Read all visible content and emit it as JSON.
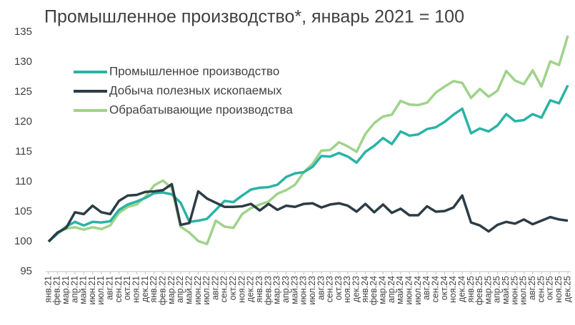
{
  "chart_data": {
    "type": "line",
    "title": "Промышленное производство*, январь 2021 = 100",
    "categories": [
      "янв.21",
      "фев.21",
      "мар.21",
      "апр.21",
      "май.21",
      "июн.21",
      "июл.21",
      "авг.21",
      "сен.21",
      "окт.21",
      "ноя.21",
      "дек.21",
      "янв.22",
      "фев.22",
      "мар.22",
      "апр.22",
      "май.22",
      "июн.22",
      "июл.22",
      "авг.22",
      "сен.22",
      "окт.22",
      "ноя.22",
      "дек.22",
      "янв.23",
      "фев.23",
      "мар.23",
      "апр.23",
      "май.23",
      "июн.23",
      "июл.23",
      "авг.23",
      "сен.23",
      "окт.23",
      "ноя.23",
      "дек.23",
      "янв.24",
      "фев.24",
      "мар.24",
      "апр.24",
      "май.24",
      "июн.24",
      "июл.24",
      "авг.24",
      "сен.24",
      "окт.24",
      "ноя.24",
      "дек.24",
      "янв.25",
      "фев.25",
      "мар.25",
      "апр.25",
      "май.25",
      "июн.25",
      "июл.25",
      "авг.25",
      "сен.25",
      "окт.25",
      "ноя.25",
      "дек.25"
    ],
    "series": [
      {
        "name": "Промышленное производство",
        "color": "#2ab3a6",
        "values": [
          100,
          101.3,
          102.5,
          103.3,
          102.7,
          103.3,
          103.2,
          103.4,
          105.3,
          106.2,
          106.7,
          107.3,
          108.1,
          108.2,
          107.9,
          106.5,
          103.3,
          103.5,
          103.8,
          105.3,
          106.8,
          106.6,
          107.7,
          108.7,
          109.0,
          109.1,
          109.5,
          110.8,
          111.4,
          111.6,
          112.5,
          114.3,
          114.2,
          114.8,
          114.2,
          113.2,
          115.0,
          116.0,
          117.3,
          116.3,
          118.4,
          117.7,
          117.9,
          118.8,
          119.1,
          120.0,
          121.2,
          122.2,
          118.1,
          118.9,
          118.4,
          119.4,
          121.3,
          120.1,
          120.3,
          121.3,
          120.7,
          123.6,
          123.1,
          126.1
        ]
      },
      {
        "name": "Добыча полезных ископаемых",
        "color": "#2d3c46",
        "values": [
          100,
          101.5,
          102.3,
          104.9,
          104.6,
          106.0,
          104.9,
          104.6,
          106.8,
          107.7,
          107.8,
          108.3,
          108.4,
          108.6,
          109.6,
          102.8,
          103.1,
          108.4,
          107.2,
          106.5,
          105.8,
          105.8,
          105.9,
          106.3,
          105.2,
          106.3,
          105.3,
          106.0,
          105.8,
          106.3,
          106.4,
          105.7,
          106.2,
          106.4,
          106.0,
          105.0,
          106.3,
          104.9,
          106.2,
          104.8,
          105.5,
          104.4,
          104.4,
          105.9,
          105.0,
          105.1,
          105.7,
          107.7,
          103.2,
          102.7,
          101.7,
          102.8,
          103.3,
          103.0,
          103.7,
          102.9,
          103.5,
          104.1,
          103.7,
          103.5
        ]
      },
      {
        "name": "Обрабатывающие производства",
        "color": "#9fd38a",
        "values": [
          100,
          101.4,
          102.2,
          102.4,
          102.0,
          102.4,
          102.1,
          102.7,
          104.8,
          105.8,
          106.2,
          107.5,
          109.4,
          110.2,
          108.9,
          102.5,
          101.5,
          100.1,
          99.6,
          103.5,
          102.5,
          102.3,
          104.6,
          105.6,
          106.2,
          106.7,
          108.0,
          108.6,
          109.5,
          111.6,
          113.0,
          115.2,
          115.3,
          116.6,
          115.9,
          115.0,
          118.0,
          119.8,
          120.9,
          121.2,
          123.5,
          122.9,
          122.8,
          123.2,
          124.9,
          125.9,
          126.8,
          126.5,
          124.0,
          125.5,
          124.2,
          125.2,
          128.5,
          126.9,
          126.3,
          128.6,
          125.9,
          130.1,
          129.5,
          134.4
        ]
      }
    ],
    "ylim": [
      95,
      135
    ],
    "yticks": [
      95,
      100,
      105,
      110,
      115,
      120,
      125,
      130,
      135
    ],
    "legend": "upper-left"
  }
}
